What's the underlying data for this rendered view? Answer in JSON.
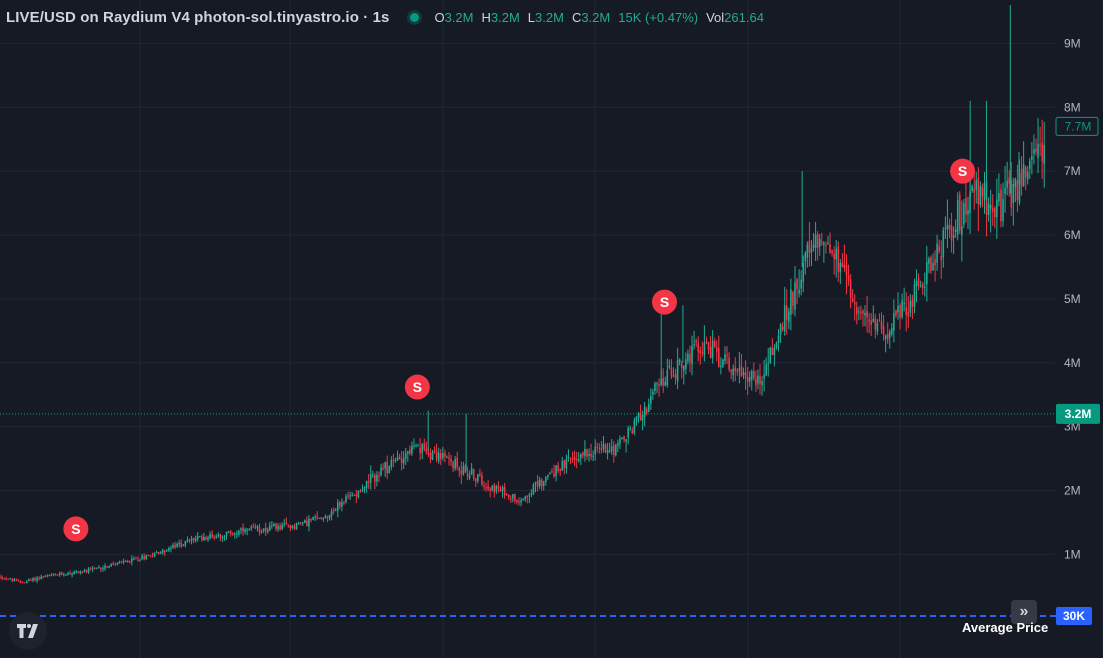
{
  "header": {
    "symbol": "LIVE/USD on Raydium V4 photon-sol.tinyastro.io · 1s",
    "o_key": "O",
    "o_val": "3.2M",
    "h_key": "H",
    "h_val": "3.2M",
    "l_key": "L",
    "l_val": "3.2M",
    "c_key": "C",
    "c_val": "3.2M",
    "change": "15K (+0.47%)",
    "vol_key": "Vol",
    "vol_val": "261.64"
  },
  "colors": {
    "background": "#161a25",
    "grid": "#232734",
    "up": "#22ab94",
    "down": "#f23645",
    "marker": "#f23645",
    "average_line": "#2962ff",
    "current_price": "#089981"
  },
  "chart_data": {
    "type": "candlestick",
    "title": "",
    "y_axis": {
      "ticks": [
        1000000,
        2000000,
        3000000,
        4000000,
        5000000,
        6000000,
        7000000,
        8000000,
        9000000
      ],
      "tick_labels": [
        "1M",
        "2M",
        "3M",
        "4M",
        "5M",
        "6M",
        "7M",
        "8M",
        "9M"
      ],
      "range": [
        0,
        9600000
      ]
    },
    "grid": true,
    "close_trend": [
      [
        0,
        650000
      ],
      [
        2,
        560000
      ],
      [
        4,
        650000
      ],
      [
        6,
        700000
      ],
      [
        8,
        740000
      ],
      [
        10,
        820000
      ],
      [
        12,
        900000
      ],
      [
        15,
        1050000
      ],
      [
        18,
        1250000
      ],
      [
        21,
        1320000
      ],
      [
        24,
        1400000
      ],
      [
        27,
        1450000
      ],
      [
        30,
        1600000
      ],
      [
        33,
        2000000
      ],
      [
        36,
        2400000
      ],
      [
        38,
        2650000
      ],
      [
        40,
        2600000
      ],
      [
        43,
        2300000
      ],
      [
        46,
        2000000
      ],
      [
        48,
        1850000
      ],
      [
        51,
        2300000
      ],
      [
        54,
        2600000
      ],
      [
        57,
        2700000
      ],
      [
        58,
        2900000
      ],
      [
        61,
        3700000
      ],
      [
        63,
        4000000
      ],
      [
        65,
        4300000
      ],
      [
        67,
        4000000
      ],
      [
        70,
        3700000
      ],
      [
        72,
        4500000
      ],
      [
        74,
        5500000
      ],
      [
        76,
        6000000
      ],
      [
        78,
        5300000
      ],
      [
        80,
        4600000
      ],
      [
        82,
        4550000
      ],
      [
        84,
        5000000
      ],
      [
        86,
        5600000
      ],
      [
        88,
        6200000
      ],
      [
        90,
        6700000
      ],
      [
        92,
        6400000
      ],
      [
        94,
        6800000
      ],
      [
        96,
        7400000
      ]
    ],
    "wick_spikes": [
      [
        39.5,
        3250000
      ],
      [
        43,
        3200000
      ],
      [
        61,
        5000000
      ],
      [
        63,
        4900000
      ],
      [
        74,
        7000000
      ],
      [
        89.5,
        8100000
      ],
      [
        91,
        8100000
      ],
      [
        93.2,
        9600000
      ],
      [
        94,
        7300000
      ]
    ],
    "sell_markers": [
      {
        "x": 7,
        "label": "S",
        "y": 1400000
      },
      {
        "x": 38.5,
        "label": "S",
        "y": 3620000
      },
      {
        "x": 61.3,
        "label": "S",
        "y": 4950000
      },
      {
        "x": 88.8,
        "label": "S",
        "y": 7000000
      }
    ],
    "current_price": {
      "label": "7.7M",
      "value": 7700000
    },
    "last_price": {
      "label": "3.2M",
      "value": 3200000
    },
    "average_price": {
      "label": "Average Price",
      "value": 30000,
      "value_label": "30K"
    }
  }
}
